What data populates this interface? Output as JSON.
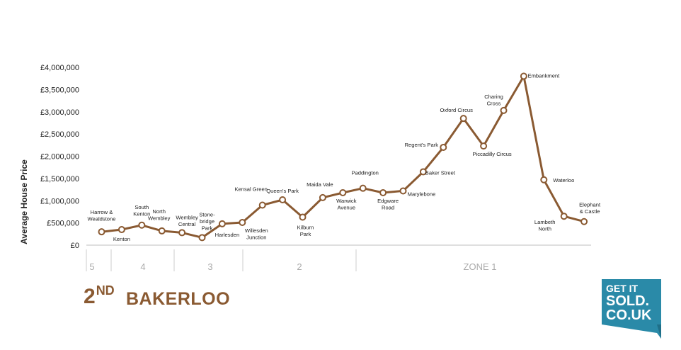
{
  "chart_data": {
    "type": "line",
    "ylabel": "Average House Price",
    "yticks": [
      "£4,000,000",
      "£3,500,000",
      "£3,000,000",
      "£2,500,000",
      "£2,000,000",
      "£1,500,000",
      "£1,000,000",
      "£500,000",
      "£0"
    ],
    "ylim": [
      0,
      4000000
    ],
    "grid": false,
    "line_color": "#8a5a32",
    "stations": [
      {
        "name": "Harrow & Wealdstone",
        "value": 300000
      },
      {
        "name": "Kenton",
        "value": 350000
      },
      {
        "name": "South Kenton",
        "value": 450000
      },
      {
        "name": "North Wembley",
        "value": 320000
      },
      {
        "name": "Wembley Central",
        "value": 280000
      },
      {
        "name": "Stone-bridge Park",
        "value": 170000
      },
      {
        "name": "Harlesden",
        "value": 480000
      },
      {
        "name": "Willesden Junction",
        "value": 510000
      },
      {
        "name": "Kensal Green",
        "value": 900000
      },
      {
        "name": "Queen's Park",
        "value": 1020000
      },
      {
        "name": "Kilburn Park",
        "value": 630000
      },
      {
        "name": "Maida Vale",
        "value": 1070000
      },
      {
        "name": "Warwick Avenue",
        "value": 1180000
      },
      {
        "name": "Paddington",
        "value": 1280000
      },
      {
        "name": "Edgware Road",
        "value": 1180000
      },
      {
        "name": "Marylebone",
        "value": 1220000
      },
      {
        "name": "Baker Street",
        "value": 1650000
      },
      {
        "name": "Regent's Park",
        "value": 2200000
      },
      {
        "name": "Oxford Circus",
        "value": 2850000
      },
      {
        "name": "Piccadilly Circus",
        "value": 2230000
      },
      {
        "name": "Charing Cross",
        "value": 3030000
      },
      {
        "name": "Embankment",
        "value": 3800000
      },
      {
        "name": "Waterloo",
        "value": 1470000
      },
      {
        "name": "Lambeth North",
        "value": 650000
      },
      {
        "name": "Elephant & Castle",
        "value": 530000
      }
    ],
    "zones": [
      "5",
      "4",
      "3",
      "2",
      "ZONE   1"
    ]
  },
  "title": {
    "rank": "2",
    "rank_suffix": "ND",
    "line_name": "BAKERLOO"
  },
  "logo": {
    "line1": "GET IT",
    "line2": "SOLD.",
    "line3": "CO.UK",
    "bg_color": "#2a8aa8"
  }
}
